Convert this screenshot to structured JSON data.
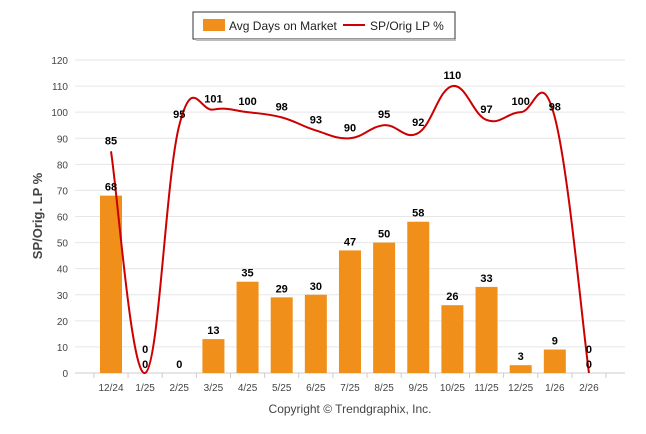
{
  "chart_data": {
    "type": "bar+line",
    "categories": [
      "12/24",
      "1/25",
      "2/25",
      "3/25",
      "4/25",
      "5/25",
      "6/25",
      "7/25",
      "8/25",
      "9/25",
      "10/25",
      "11/25",
      "12/25",
      "1/26",
      "2/26"
    ],
    "series": [
      {
        "name": "Avg Days on Market",
        "type": "bar",
        "color": "#f0901a",
        "values": [
          68,
          0,
          0,
          13,
          35,
          29,
          30,
          47,
          50,
          58,
          26,
          33,
          3,
          9,
          0
        ]
      },
      {
        "name": "SP/Orig LP %",
        "type": "line",
        "color": "#cc0000",
        "values": [
          85,
          0,
          95,
          101,
          100,
          98,
          93,
          90,
          95,
          92,
          110,
          97,
          100,
          98,
          0
        ]
      }
    ],
    "ylabel": "SP/Orig. LP %",
    "ylim": [
      0,
      120
    ],
    "yticks": [
      0,
      10,
      20,
      30,
      40,
      50,
      60,
      70,
      80,
      90,
      100,
      110,
      120
    ],
    "grid": true,
    "legend": "top-center"
  },
  "footer": "Copyright © Trendgraphix, Inc."
}
